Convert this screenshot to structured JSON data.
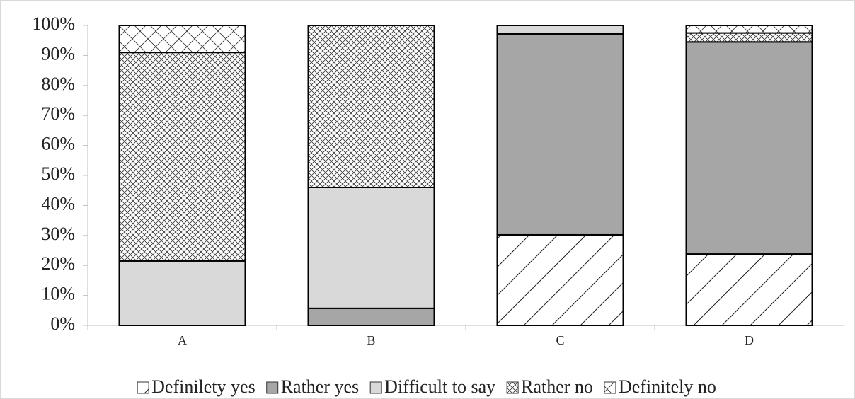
{
  "chart_data": {
    "type": "stacked_bar",
    "categories": [
      "A",
      "B",
      "C",
      "D"
    ],
    "series": [
      {
        "name": "Definilety yes",
        "color": "#ffffff",
        "hatch": "diagonal",
        "values": [
          0,
          0,
          30.2,
          23.8
        ]
      },
      {
        "name": "Rather yes",
        "color": "#a6a6a6",
        "values": [
          0,
          5.7,
          67,
          70.7
        ]
      },
      {
        "name": "Difficult to say",
        "color": "#d9d9d9",
        "values": [
          21.5,
          40.3,
          2.8,
          0
        ]
      },
      {
        "name": "Rather no",
        "color": "#ffffff",
        "hatch": "fine-crosshatch",
        "values": [
          69.5,
          54,
          0,
          3
        ]
      },
      {
        "name": "Definitely no",
        "color": "#ffffff",
        "hatch": "coarse-crosshatch",
        "values": [
          9,
          0,
          0,
          2.5
        ]
      }
    ],
    "ylim": [
      0,
      100
    ],
    "yticks": [
      {
        "value": 0,
        "label": "0%"
      },
      {
        "value": 10,
        "label": "10%"
      },
      {
        "value": 20,
        "label": "20%"
      },
      {
        "value": 30,
        "label": "30%"
      },
      {
        "value": 40,
        "label": "40%"
      },
      {
        "value": 50,
        "label": "50%"
      },
      {
        "value": 60,
        "label": "60%"
      },
      {
        "value": 70,
        "label": "70%"
      },
      {
        "value": 80,
        "label": "80%"
      },
      {
        "value": 90,
        "label": "90%"
      },
      {
        "value": 100,
        "label": "100%"
      }
    ],
    "legend": "bottom"
  }
}
